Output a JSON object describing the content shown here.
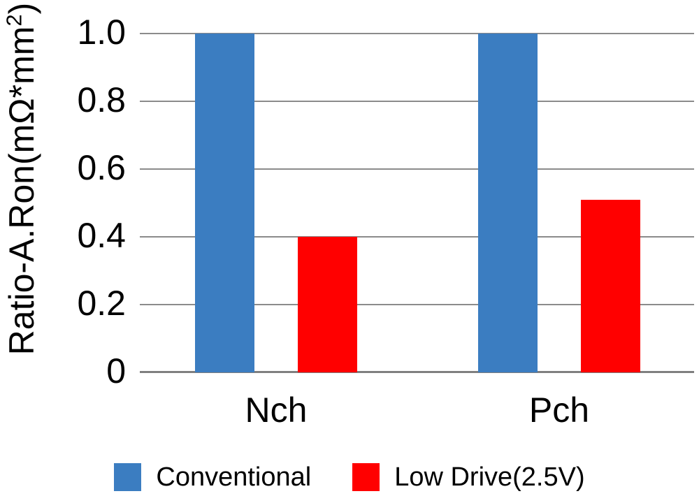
{
  "chart_data": {
    "type": "bar",
    "title": "",
    "categories": [
      "Nch",
      "Pch"
    ],
    "series": [
      {
        "name": "Conventional",
        "color": "#3B7DC1",
        "values": [
          1.0,
          1.0
        ]
      },
      {
        "name": "Low Drive(2.5V)",
        "color": "#FF0000",
        "values": [
          0.4,
          0.51
        ]
      }
    ],
    "xlabel": "",
    "ylabel": "Ratio-A.Ron(mΩ*mm²)",
    "ylabel_parts": {
      "base": "Ratio-A.Ron(mΩ*mm",
      "sup": "2",
      "close": ")"
    },
    "yticks": [
      0,
      0.2,
      0.4,
      0.6,
      0.8,
      1.0
    ],
    "ytick_labels": [
      "0",
      "0.2",
      "0.4",
      "0.6",
      "0.8",
      "1.0"
    ],
    "ylim": [
      0,
      1.0
    ],
    "grid": true,
    "gridline_color": "#8B8B8B",
    "axis_line_color": "#7F7F7F",
    "background_color": "#FFFFFF",
    "text_color": "#000000",
    "legend": {
      "position": "bottom",
      "entries": [
        "Conventional",
        "Low Drive(2.5V)"
      ]
    }
  }
}
